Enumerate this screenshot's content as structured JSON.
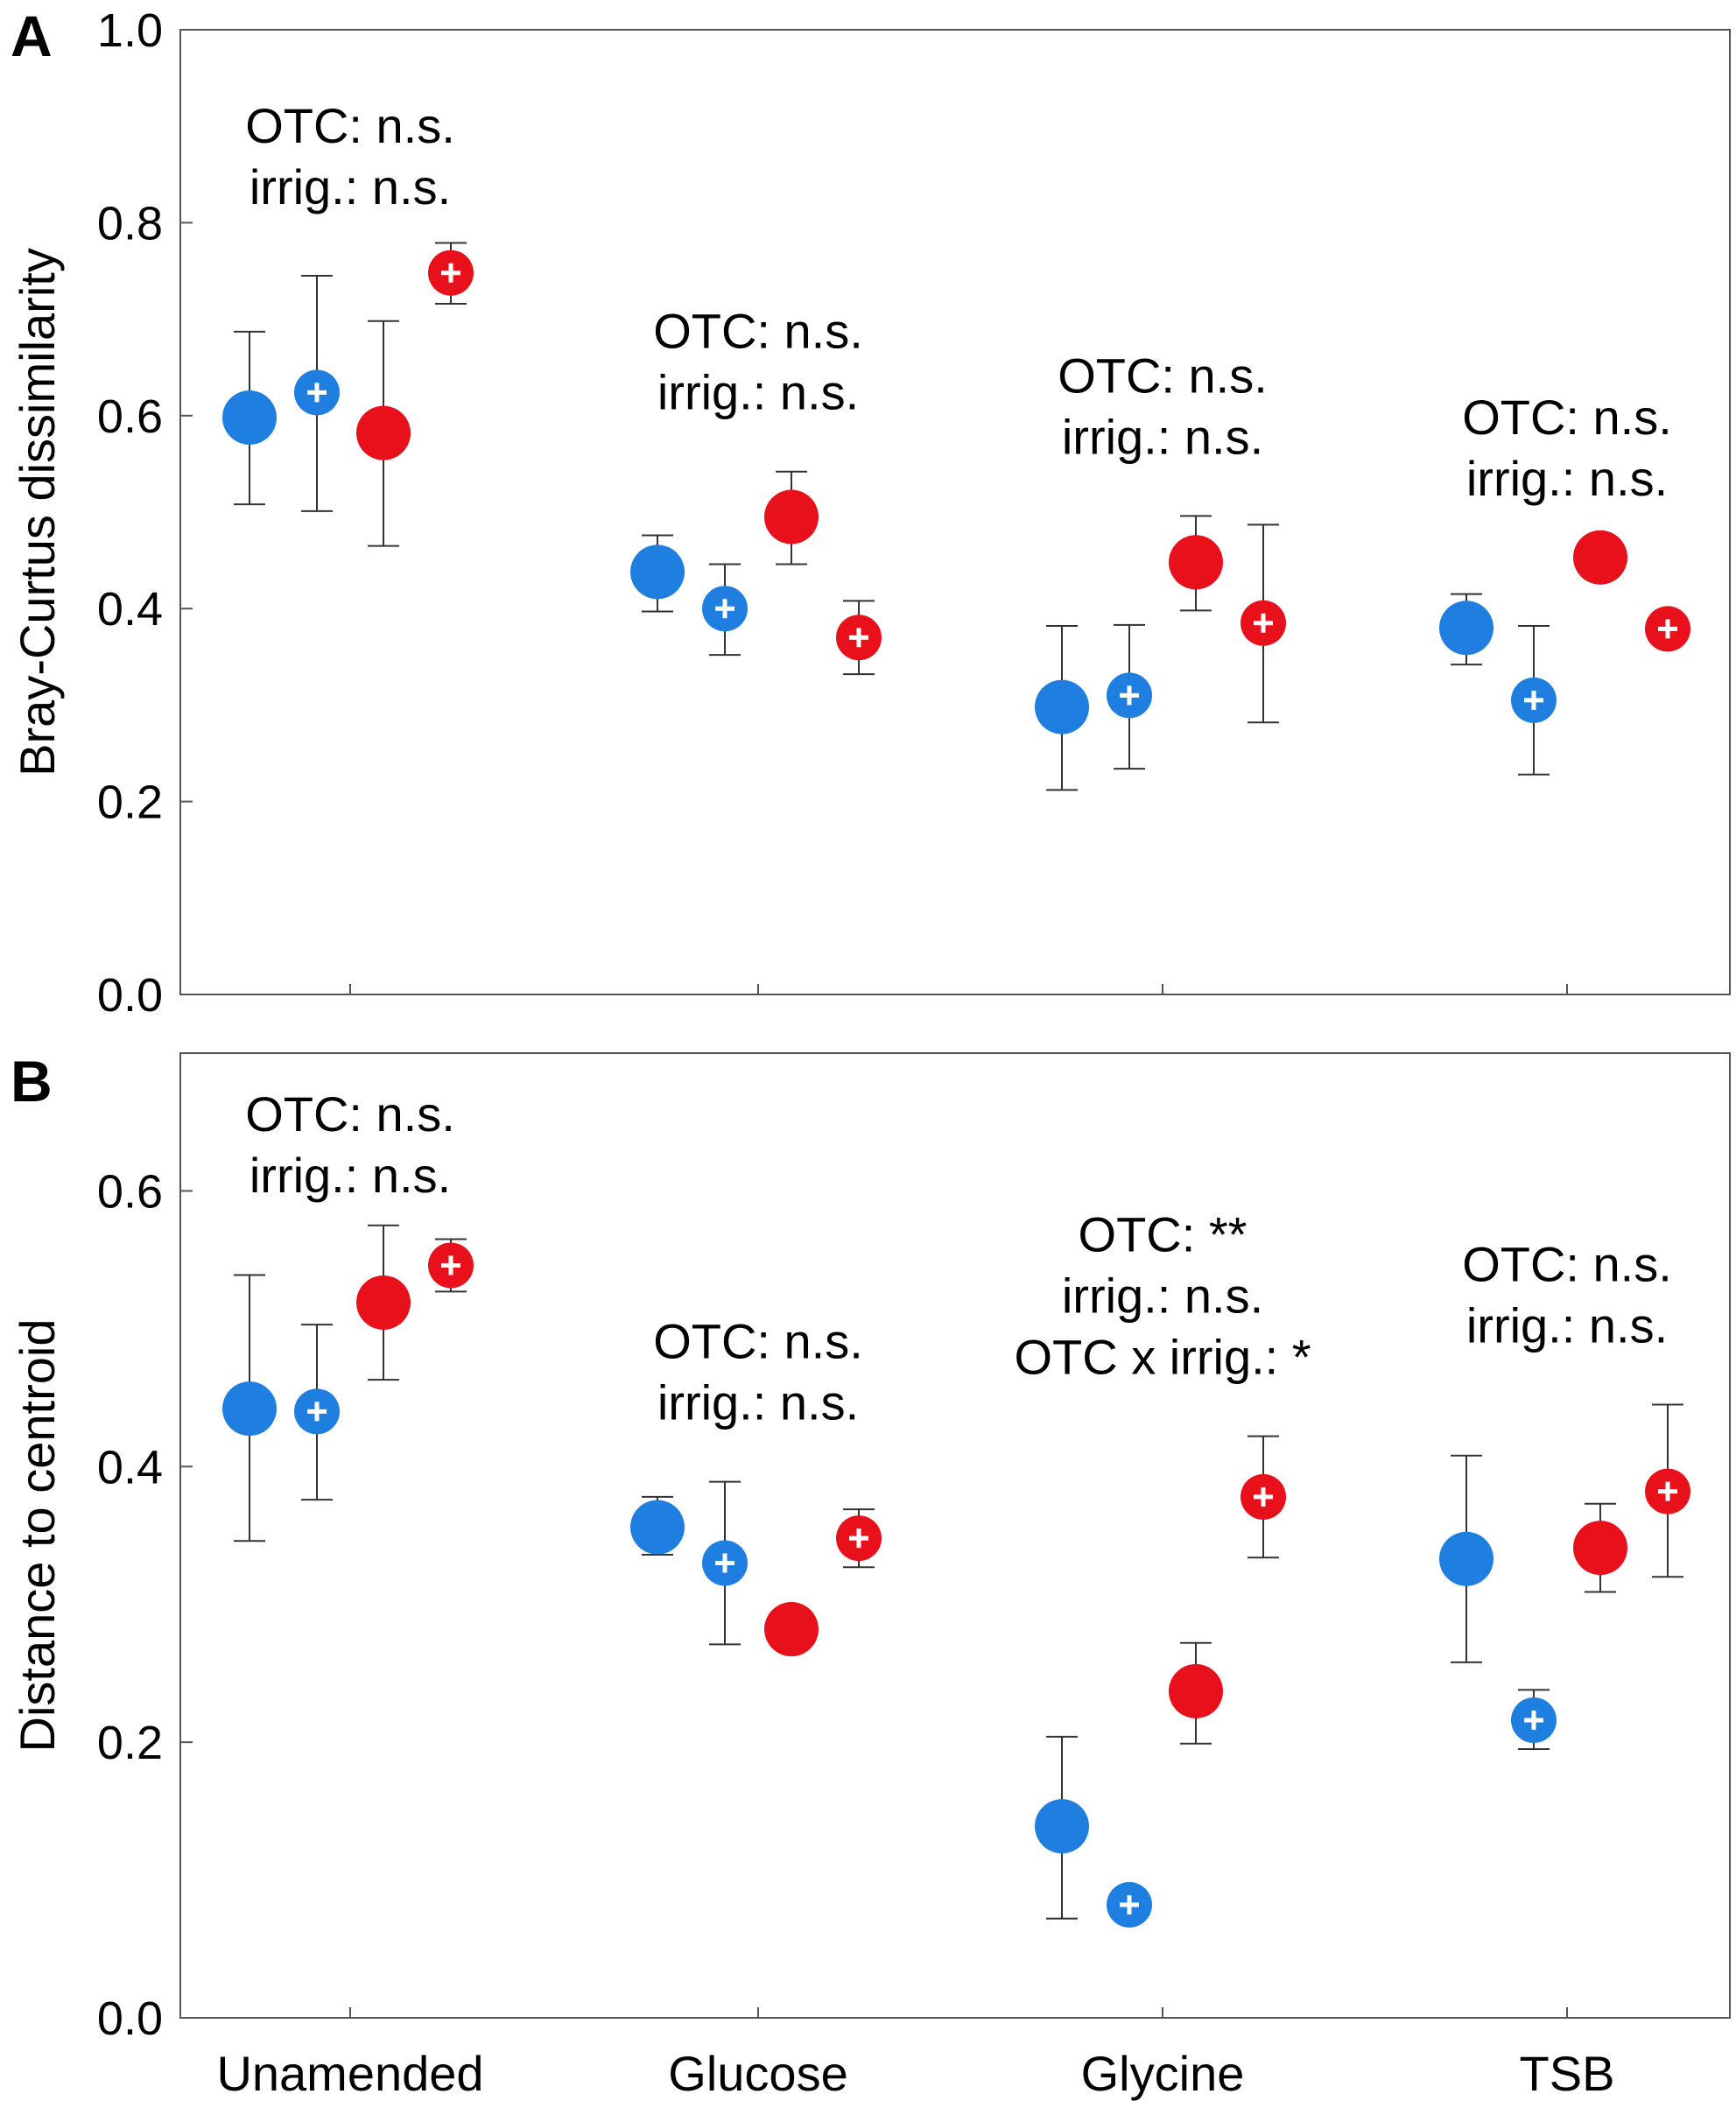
{
  "chart_data": [
    {
      "panel": "A",
      "type": "scatter",
      "ylabel": "Bray-Curtus dissimilarity",
      "ylim": [
        0.0,
        1.0
      ],
      "yticks": [
        "0.0",
        "0.2",
        "0.4",
        "0.6",
        "0.8",
        "1.0"
      ],
      "categories": [
        "Unamended",
        "Glucose",
        "Glycine",
        "TSB"
      ],
      "annotations": [
        [
          "OTC: n.s.",
          "irrig.: n.s."
        ],
        [
          "OTC: n.s.",
          "irrig.: n.s."
        ],
        [
          "OTC: n.s.",
          "irrig.: n.s."
        ],
        [
          "OTC: n.s.",
          "irrig.: n.s."
        ]
      ],
      "series": [
        {
          "name": "blue",
          "color": "#1e7fe0",
          "marker": "plain",
          "values": [
            0.598,
            0.438,
            0.298,
            0.38
          ],
          "err_low": [
            0.508,
            0.397,
            0.212,
            0.342
          ],
          "err_high": [
            0.687,
            0.476,
            0.382,
            0.415
          ]
        },
        {
          "name": "blue+",
          "color": "#1e7fe0",
          "marker": "plus",
          "values": [
            0.624,
            0.4,
            0.31,
            0.305
          ],
          "err_low": [
            0.501,
            0.352,
            0.234,
            0.228
          ],
          "err_high": [
            0.745,
            0.446,
            0.383,
            0.382
          ]
        },
        {
          "name": "red",
          "color": "#e8101a",
          "marker": "plain",
          "values": [
            0.582,
            0.495,
            0.448,
            0.453
          ],
          "err_low": [
            0.465,
            0.446,
            0.398,
            null
          ],
          "err_high": [
            0.698,
            0.542,
            0.496,
            null
          ]
        },
        {
          "name": "red+",
          "color": "#e8101a",
          "marker": "plus",
          "values": [
            0.748,
            0.37,
            0.385,
            0.379
          ],
          "err_low": [
            0.716,
            0.332,
            0.282,
            null
          ],
          "err_high": [
            0.779,
            0.408,
            0.487,
            null
          ]
        }
      ]
    },
    {
      "panel": "B",
      "type": "scatter",
      "ylabel": "Distance to centroid",
      "ylim": [
        0.0,
        0.7
      ],
      "yticks": [
        "0.0",
        "0.2",
        "0.4",
        "0.6"
      ],
      "categories": [
        "Unamended",
        "Glucose",
        "Glycine",
        "TSB"
      ],
      "annotations": [
        [
          "OTC: n.s.",
          "irrig.: n.s."
        ],
        [
          "OTC: n.s.",
          "irrig.: n.s."
        ],
        [
          "OTC: **",
          "irrig.: n.s.",
          "OTC x irrig.: *"
        ],
        [
          "OTC: n.s.",
          "irrig.: n.s."
        ]
      ],
      "series": [
        {
          "name": "blue",
          "color": "#1e7fe0",
          "marker": "plain",
          "values": [
            0.442,
            0.356,
            0.139,
            0.333
          ],
          "err_low": [
            0.346,
            0.336,
            0.072,
            0.258
          ],
          "err_high": [
            0.539,
            0.378,
            0.204,
            0.408
          ]
        },
        {
          "name": "blue+",
          "color": "#1e7fe0",
          "marker": "plus",
          "values": [
            0.44,
            0.33,
            0.082,
            0.216
          ],
          "err_low": [
            0.376,
            0.271,
            null,
            0.195
          ],
          "err_high": [
            0.503,
            0.389,
            null,
            0.238
          ]
        },
        {
          "name": "red",
          "color": "#e8101a",
          "marker": "plain",
          "values": [
            0.519,
            0.282,
            0.237,
            0.341
          ],
          "err_low": [
            0.463,
            null,
            0.199,
            0.309
          ],
          "err_high": [
            0.575,
            null,
            0.272,
            0.373
          ]
        },
        {
          "name": "red+",
          "color": "#e8101a",
          "marker": "plus",
          "values": [
            0.546,
            0.348,
            0.378,
            0.382
          ],
          "err_low": [
            0.527,
            0.327,
            0.334,
            0.32
          ],
          "err_high": [
            0.565,
            0.369,
            0.422,
            0.445
          ]
        }
      ]
    }
  ]
}
